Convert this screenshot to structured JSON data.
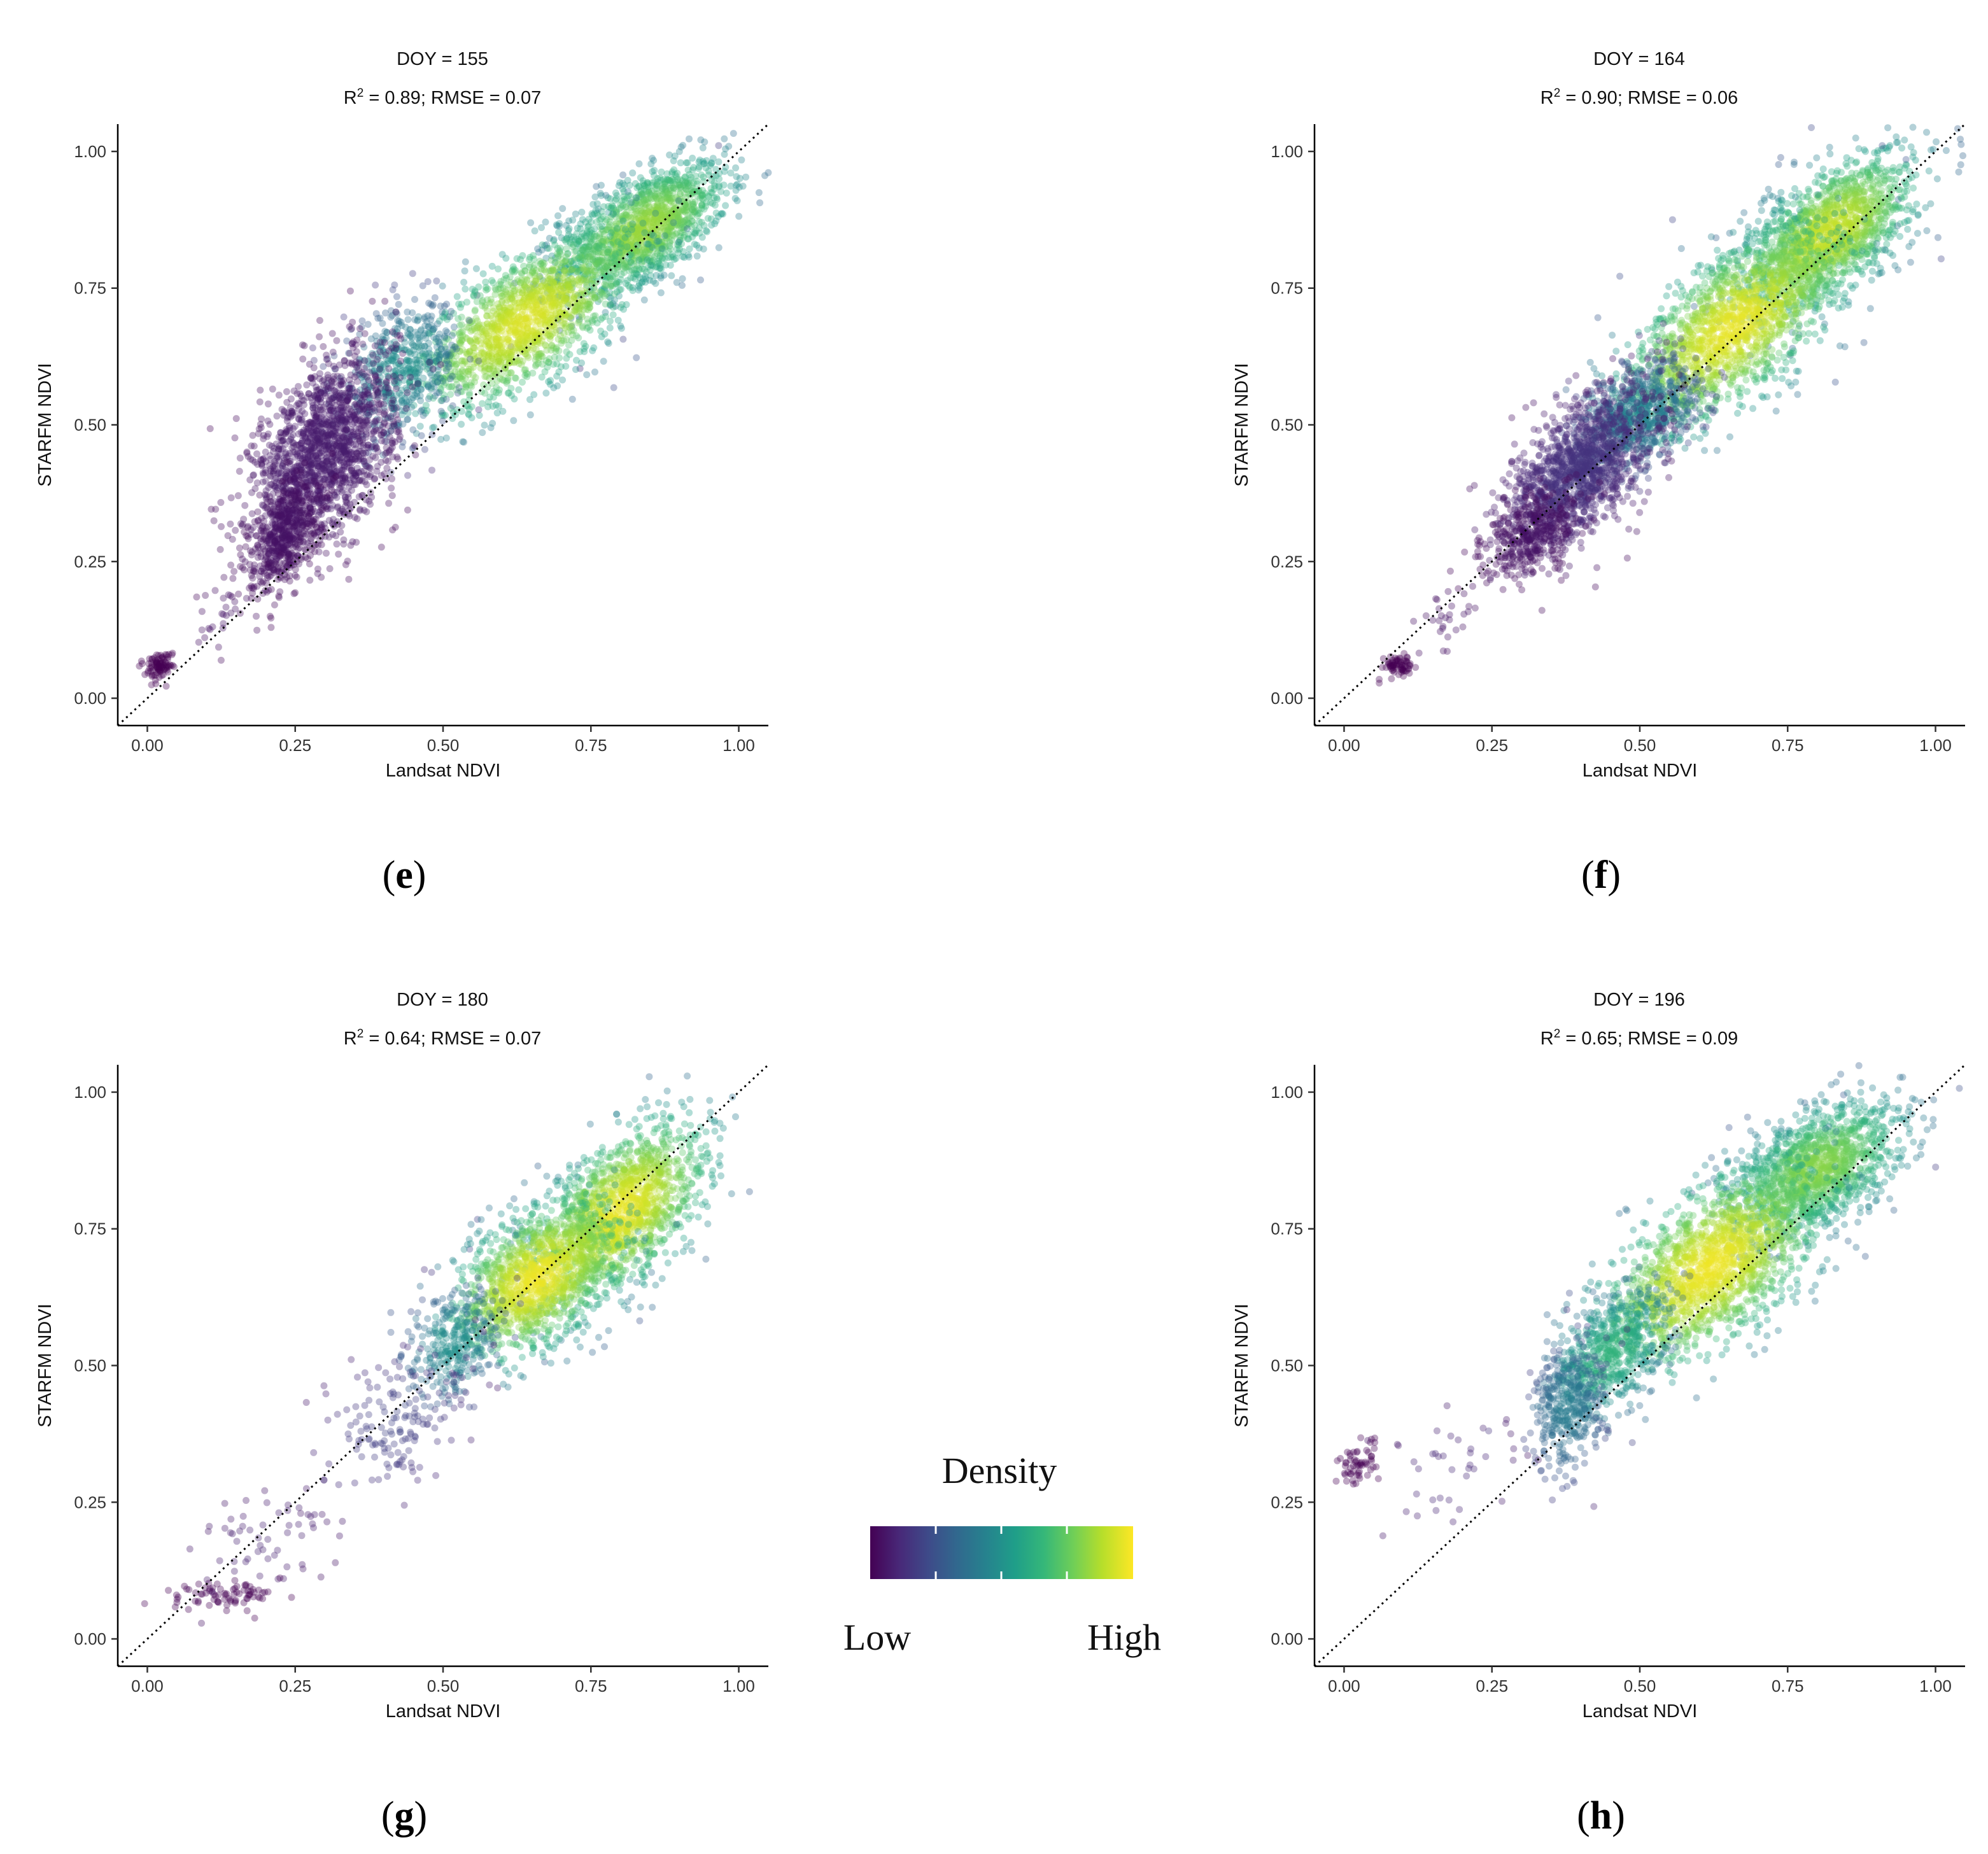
{
  "chart_data": [
    {
      "panel": "e",
      "type": "scatter",
      "title": "DOY = 155",
      "r2": "0.89",
      "rmse": "0.07",
      "xlabel": "Landsat NDVI",
      "ylabel": "STARFM NDVI",
      "xlim": [
        -0.05,
        1.05
      ],
      "ylim": [
        -0.05,
        1.05
      ],
      "xticks": [
        "0.00",
        "0.25",
        "0.50",
        "0.75",
        "1.00"
      ],
      "yticks": [
        "0.00",
        "0.25",
        "0.50",
        "0.75",
        "1.00"
      ],
      "reference_line": "1:1 dotted",
      "clusters": [
        {
          "cx": 0.84,
          "cy": 0.86,
          "sx": 0.07,
          "sy": 0.06,
          "rho": 0.6,
          "n": 1400,
          "d": 0.85
        },
        {
          "cx": 0.64,
          "cy": 0.69,
          "sx": 0.09,
          "sy": 0.08,
          "rho": 0.65,
          "n": 1500,
          "d": 0.95
        },
        {
          "cx": 0.43,
          "cy": 0.6,
          "sx": 0.05,
          "sy": 0.06,
          "rho": 0.3,
          "n": 500,
          "d": 0.5
        },
        {
          "cx": 0.3,
          "cy": 0.45,
          "sx": 0.06,
          "sy": 0.09,
          "rho": 0.45,
          "n": 1600,
          "d": 0.08
        },
        {
          "cx": 0.23,
          "cy": 0.3,
          "sx": 0.03,
          "sy": 0.05,
          "rho": 0.5,
          "n": 500,
          "d": 0.05
        },
        {
          "cx": 0.02,
          "cy": 0.06,
          "sx": 0.012,
          "sy": 0.012,
          "rho": 0.2,
          "n": 90,
          "d": 0.0
        },
        {
          "cx": 0.14,
          "cy": 0.16,
          "sx": 0.04,
          "sy": 0.04,
          "rho": 0.5,
          "n": 30,
          "d": 0.05
        }
      ]
    },
    {
      "panel": "f",
      "type": "scatter",
      "title": "DOY = 164",
      "r2": "0.90",
      "rmse": "0.06",
      "xlabel": "Landsat NDVI",
      "ylabel": "STARFM NDVI",
      "xlim": [
        -0.05,
        1.05
      ],
      "ylim": [
        -0.05,
        1.05
      ],
      "xticks": [
        "0.00",
        "0.25",
        "0.50",
        "0.75",
        "1.00"
      ],
      "yticks": [
        "0.00",
        "0.25",
        "0.50",
        "0.75",
        "1.00"
      ],
      "reference_line": "1:1 dotted",
      "clusters": [
        {
          "cx": 0.82,
          "cy": 0.85,
          "sx": 0.07,
          "sy": 0.07,
          "rho": 0.6,
          "n": 1500,
          "d": 0.92
        },
        {
          "cx": 0.66,
          "cy": 0.68,
          "sx": 0.09,
          "sy": 0.09,
          "rho": 0.65,
          "n": 1600,
          "d": 0.97
        },
        {
          "cx": 0.5,
          "cy": 0.52,
          "sx": 0.05,
          "sy": 0.05,
          "rho": 0.4,
          "n": 700,
          "d": 0.45
        },
        {
          "cx": 0.4,
          "cy": 0.42,
          "sx": 0.06,
          "sy": 0.07,
          "rho": 0.55,
          "n": 1300,
          "d": 0.15
        },
        {
          "cx": 0.32,
          "cy": 0.3,
          "sx": 0.04,
          "sy": 0.04,
          "rho": 0.5,
          "n": 400,
          "d": 0.05
        },
        {
          "cx": 0.09,
          "cy": 0.06,
          "sx": 0.012,
          "sy": 0.01,
          "rho": 0.2,
          "n": 70,
          "d": 0.0
        },
        {
          "cx": 0.17,
          "cy": 0.14,
          "sx": 0.04,
          "sy": 0.04,
          "rho": 0.5,
          "n": 30,
          "d": 0.05
        }
      ]
    },
    {
      "panel": "g",
      "type": "scatter",
      "title": "DOY = 180",
      "r2": "0.64",
      "rmse": "0.07",
      "xlabel": "Landsat NDVI",
      "ylabel": "STARFM NDVI",
      "xlim": [
        -0.05,
        1.05
      ],
      "ylim": [
        -0.05,
        1.05
      ],
      "xticks": [
        "0.00",
        "0.25",
        "0.50",
        "0.75",
        "1.00"
      ],
      "yticks": [
        "0.00",
        "0.25",
        "0.50",
        "0.75",
        "1.00"
      ],
      "reference_line": "1:1 dotted",
      "clusters": [
        {
          "cx": 0.8,
          "cy": 0.78,
          "sx": 0.07,
          "sy": 0.08,
          "rho": 0.55,
          "n": 1500,
          "d": 0.97
        },
        {
          "cx": 0.66,
          "cy": 0.66,
          "sx": 0.07,
          "sy": 0.07,
          "rho": 0.5,
          "n": 1300,
          "d": 0.98
        },
        {
          "cx": 0.52,
          "cy": 0.54,
          "sx": 0.04,
          "sy": 0.05,
          "rho": 0.3,
          "n": 300,
          "d": 0.5
        },
        {
          "cx": 0.42,
          "cy": 0.4,
          "sx": 0.06,
          "sy": 0.07,
          "rho": 0.4,
          "n": 160,
          "d": 0.2
        },
        {
          "cx": 0.2,
          "cy": 0.18,
          "sx": 0.07,
          "sy": 0.06,
          "rho": 0.5,
          "n": 60,
          "d": 0.1
        },
        {
          "cx": 0.13,
          "cy": 0.08,
          "sx": 0.05,
          "sy": 0.012,
          "rho": 0.1,
          "n": 80,
          "d": 0.0
        }
      ]
    },
    {
      "panel": "h",
      "type": "scatter",
      "title": "DOY = 196",
      "r2": "0.65",
      "rmse": "0.09",
      "xlabel": "Landsat NDVI",
      "ylabel": "STARFM NDVI",
      "xlim": [
        -0.05,
        1.05
      ],
      "ylim": [
        -0.05,
        1.05
      ],
      "xticks": [
        "0.00",
        "0.25",
        "0.50",
        "0.75",
        "1.00"
      ],
      "yticks": [
        "0.00",
        "0.25",
        "0.50",
        "0.75",
        "1.00"
      ],
      "reference_line": "1:1 dotted",
      "clusters": [
        {
          "cx": 0.8,
          "cy": 0.86,
          "sx": 0.07,
          "sy": 0.06,
          "rho": 0.5,
          "n": 1300,
          "d": 0.82
        },
        {
          "cx": 0.62,
          "cy": 0.68,
          "sx": 0.09,
          "sy": 0.09,
          "rho": 0.6,
          "n": 1700,
          "d": 0.98
        },
        {
          "cx": 0.45,
          "cy": 0.52,
          "sx": 0.05,
          "sy": 0.06,
          "rho": 0.5,
          "n": 600,
          "d": 0.65
        },
        {
          "cx": 0.38,
          "cy": 0.42,
          "sx": 0.03,
          "sy": 0.06,
          "rho": 0.2,
          "n": 350,
          "d": 0.42
        },
        {
          "cx": 0.02,
          "cy": 0.32,
          "sx": 0.015,
          "sy": 0.02,
          "rho": 0.2,
          "n": 60,
          "d": 0.0
        },
        {
          "cx": 0.18,
          "cy": 0.3,
          "sx": 0.06,
          "sy": 0.06,
          "rho": 0.3,
          "n": 40,
          "d": 0.12
        }
      ]
    }
  ],
  "panel_labels": [
    "e",
    "f",
    "g",
    "h"
  ],
  "legend": {
    "title": "Density",
    "low_label": "Low",
    "high_label": "High",
    "colormap": "viridis",
    "colors": [
      "#440154",
      "#482878",
      "#3e4a89",
      "#31688e",
      "#26828e",
      "#1f9e89",
      "#35b779",
      "#6ece58",
      "#b5de2b",
      "#fde725"
    ]
  },
  "reference_line_color": "#000000"
}
